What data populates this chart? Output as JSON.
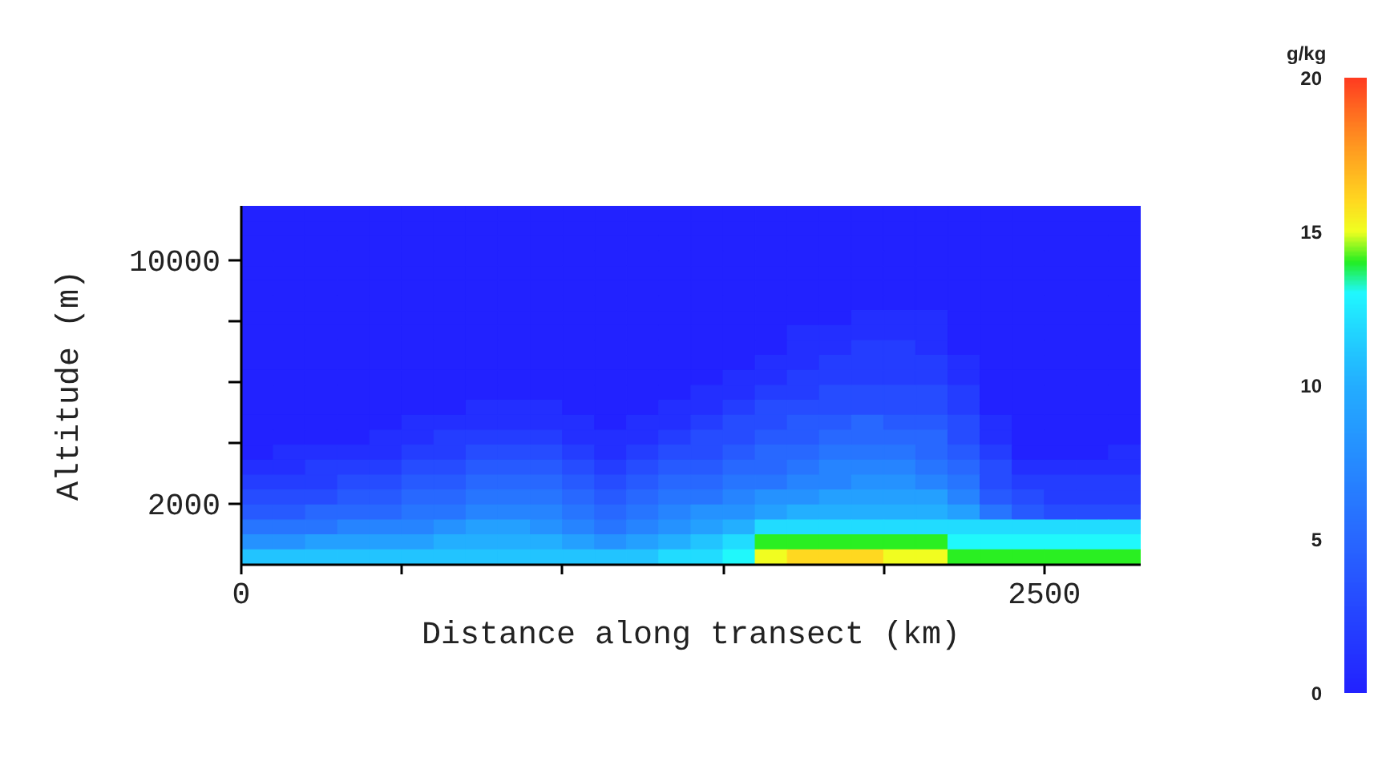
{
  "chart_data": {
    "type": "heatmap",
    "xlabel": "Distance along transect (km)",
    "ylabel": "Altitude (m)",
    "clabel": "g/kg",
    "x": [
      50,
      150,
      250,
      350,
      450,
      550,
      650,
      750,
      850,
      950,
      1050,
      1150,
      1250,
      1350,
      1450,
      1550,
      1650,
      1750,
      1850,
      1950,
      2050,
      2150,
      2250,
      2350,
      2450,
      2550,
      2650,
      2750
    ],
    "xlim": [
      0,
      2800
    ],
    "xticks": [
      0,
      {
        "value": 500,
        "label": null
      },
      {
        "value": 1000,
        "label": null
      },
      {
        "value": 1500,
        "label": null
      },
      {
        "value": 2000,
        "label": null
      },
      2500
    ],
    "ylim": [
      0,
      11800
    ],
    "yticks": [
      2000,
      {
        "value": 4000,
        "label": null
      },
      {
        "value": 6000,
        "label": null
      },
      {
        "value": 8000,
        "label": null
      },
      10000
    ],
    "clim": [
      0,
      20
    ],
    "cticks": [
      0,
      5,
      10,
      15,
      20
    ],
    "colors": [
      "#2222ff",
      "#2330ff",
      "#243eff",
      "#264cff",
      "#275aff",
      "#2868ff",
      "#2776ff",
      "#2684ff",
      "#2592ff",
      "#24a0ff",
      "#23aeff",
      "#22c4ff",
      "#21dcff",
      "#20f8ff",
      "#22ee22",
      "#f0ff20",
      "#ffd820",
      "#ffb420",
      "#ff9020",
      "#ff6820",
      "#ff3c20"
    ],
    "cells": [
      [
        0,
        0,
        0,
        0,
        0,
        0,
        0,
        0,
        0,
        0,
        0,
        0,
        0,
        0,
        0,
        0,
        0,
        0,
        0,
        0,
        0,
        0,
        0,
        0,
        0,
        0,
        0,
        0
      ],
      [
        0,
        0,
        0,
        0,
        0,
        0,
        0,
        0,
        0,
        0,
        0,
        0,
        0,
        0,
        0,
        0,
        0,
        0,
        0,
        0,
        0,
        0,
        0,
        0,
        0,
        0,
        0,
        0
      ],
      [
        0,
        0,
        0,
        0,
        0,
        0,
        0,
        0,
        0,
        0,
        0,
        0,
        0,
        0,
        0,
        0,
        0,
        0,
        0,
        0,
        0,
        0,
        0,
        0,
        0,
        0,
        0,
        0
      ],
      [
        0,
        0,
        0,
        0,
        0,
        0,
        0,
        0,
        0,
        0,
        0,
        0,
        0,
        0,
        0,
        0,
        0,
        0,
        0,
        0,
        0,
        0,
        0,
        0,
        0,
        0,
        0,
        0
      ],
      [
        0,
        0,
        0,
        0,
        0,
        0,
        0,
        0,
        0,
        0,
        0,
        0,
        0,
        0,
        0,
        0,
        0,
        0,
        0,
        0,
        0,
        0,
        0,
        0,
        0,
        0,
        0,
        0
      ],
      [
        0,
        0,
        0,
        0,
        0,
        0,
        0,
        0,
        0,
        0,
        0,
        0,
        0,
        0,
        0,
        0,
        0,
        0,
        0,
        0,
        0,
        0,
        0,
        0,
        0,
        0,
        0,
        0
      ],
      [
        0,
        0,
        0,
        0,
        0,
        0,
        0,
        0,
        0,
        0,
        0,
        0,
        0,
        0,
        0,
        0,
        0,
        0,
        0,
        0,
        0,
        0,
        0,
        0,
        0,
        0,
        0,
        0
      ],
      [
        0,
        0,
        0,
        0,
        0,
        0,
        0,
        0,
        0,
        0,
        0,
        0,
        0,
        0,
        0,
        0,
        0,
        0,
        0,
        1,
        1,
        1,
        0,
        0,
        0,
        0,
        0,
        0
      ],
      [
        0,
        0,
        0,
        0,
        0,
        0,
        0,
        0,
        0,
        0,
        0,
        0,
        0,
        0,
        0,
        0,
        0,
        1,
        1,
        1,
        1,
        1,
        0,
        0,
        0,
        0,
        0,
        0
      ],
      [
        0,
        0,
        0,
        0,
        0,
        0,
        0,
        0,
        0,
        0,
        0,
        0,
        0,
        0,
        0,
        0,
        0,
        1,
        1,
        2,
        2,
        1,
        0,
        0,
        0,
        0,
        0,
        0
      ],
      [
        0,
        0,
        0,
        0,
        0,
        0,
        0,
        0,
        0,
        0,
        0,
        0,
        0,
        0,
        0,
        0,
        1,
        1,
        2,
        2,
        2,
        2,
        1,
        0,
        0,
        0,
        0,
        0
      ],
      [
        0,
        0,
        0,
        0,
        0,
        0,
        0,
        0,
        0,
        0,
        0,
        0,
        0,
        0,
        0,
        1,
        1,
        2,
        2,
        2,
        2,
        2,
        1,
        0,
        0,
        0,
        0,
        0
      ],
      [
        0,
        0,
        0,
        0,
        0,
        0,
        0,
        0,
        0,
        0,
        0,
        0,
        0,
        0,
        1,
        1,
        2,
        2,
        3,
        3,
        3,
        3,
        2,
        0,
        0,
        0,
        0,
        0
      ],
      [
        0,
        0,
        0,
        0,
        0,
        0,
        0,
        1,
        1,
        1,
        0,
        0,
        0,
        1,
        1,
        2,
        3,
        3,
        3,
        3,
        3,
        3,
        2,
        0,
        0,
        0,
        0,
        0
      ],
      [
        0,
        0,
        0,
        0,
        0,
        1,
        1,
        1,
        1,
        1,
        1,
        0,
        1,
        1,
        2,
        3,
        3,
        4,
        4,
        5,
        4,
        4,
        3,
        1,
        0,
        0,
        0,
        0
      ],
      [
        0,
        0,
        0,
        0,
        1,
        1,
        2,
        2,
        2,
        2,
        1,
        1,
        1,
        2,
        3,
        3,
        4,
        4,
        5,
        5,
        5,
        5,
        3,
        1,
        0,
        0,
        0,
        0
      ],
      [
        0,
        1,
        1,
        1,
        1,
        2,
        2,
        3,
        3,
        3,
        2,
        1,
        2,
        3,
        3,
        4,
        5,
        5,
        6,
        6,
        6,
        5,
        4,
        2,
        0,
        0,
        0,
        1
      ],
      [
        1,
        1,
        2,
        2,
        2,
        3,
        3,
        4,
        4,
        4,
        3,
        2,
        3,
        4,
        4,
        5,
        5,
        6,
        7,
        7,
        7,
        6,
        5,
        3,
        1,
        1,
        1,
        1
      ],
      [
        2,
        2,
        2,
        3,
        3,
        4,
        4,
        5,
        5,
        5,
        4,
        3,
        4,
        5,
        5,
        6,
        6,
        7,
        7,
        8,
        8,
        7,
        6,
        3,
        2,
        2,
        2,
        2
      ],
      [
        3,
        3,
        3,
        4,
        4,
        5,
        5,
        6,
        6,
        6,
        5,
        4,
        5,
        6,
        6,
        7,
        8,
        8,
        9,
        9,
        9,
        9,
        7,
        4,
        3,
        2,
        2,
        2
      ],
      [
        4,
        4,
        5,
        5,
        5,
        6,
        6,
        7,
        7,
        7,
        6,
        5,
        6,
        7,
        8,
        8,
        9,
        10,
        10,
        10,
        10,
        10,
        9,
        6,
        4,
        3,
        3,
        3
      ],
      [
        6,
        6,
        6,
        7,
        7,
        7,
        8,
        9,
        9,
        8,
        7,
        6,
        7,
        8,
        9,
        10,
        12,
        12,
        12,
        12,
        12,
        12,
        12,
        12,
        12,
        12,
        12,
        12
      ],
      [
        8,
        8,
        9,
        9,
        9,
        9,
        10,
        10,
        10,
        10,
        9,
        8,
        9,
        10,
        11,
        12,
        14,
        14,
        14,
        14,
        14,
        14,
        13,
        13,
        13,
        13,
        13,
        13
      ],
      [
        11,
        11,
        11,
        11,
        11,
        11,
        11,
        11,
        11,
        11,
        11,
        11,
        11,
        12,
        12,
        13,
        15,
        16,
        16,
        16,
        15,
        15,
        14,
        14,
        14,
        14,
        14,
        14
      ]
    ]
  }
}
